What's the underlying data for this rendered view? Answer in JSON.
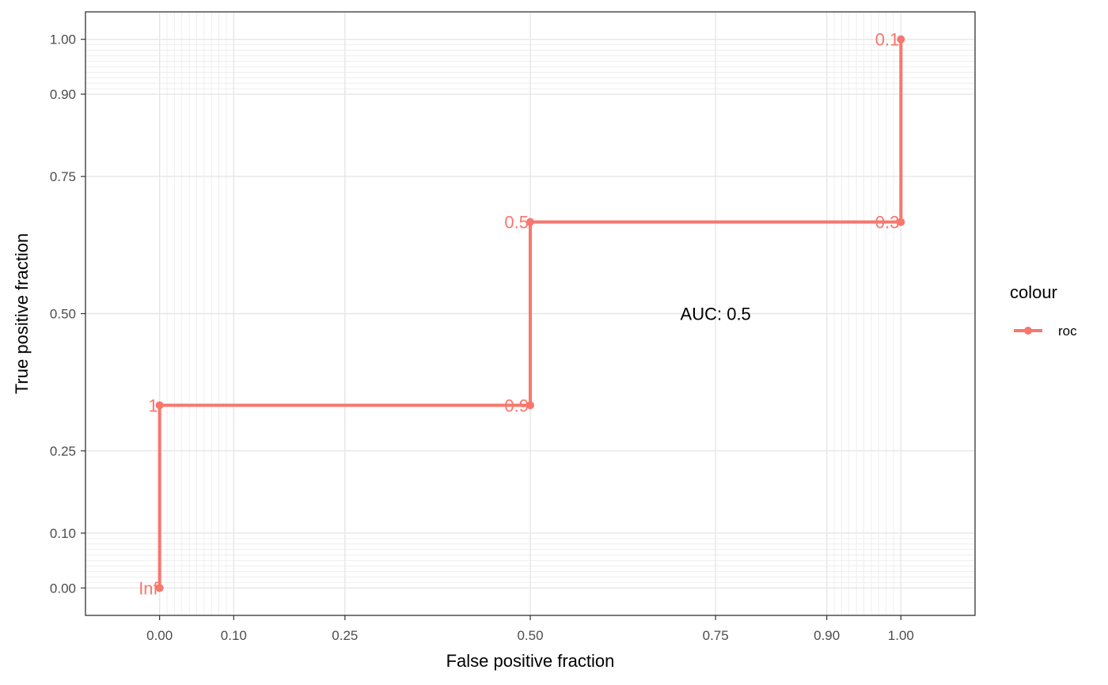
{
  "chart_data": {
    "type": "line",
    "title": "",
    "xlabel": "False positive fraction",
    "ylabel": "True positive fraction",
    "xlim": [
      -0.1,
      1.1
    ],
    "ylim": [
      -0.05,
      1.05
    ],
    "x_ticks": [
      0.0,
      0.1,
      0.25,
      0.5,
      0.75,
      0.9,
      1.0
    ],
    "x_tick_labels": [
      "0.00",
      "0.10",
      "0.25",
      "0.50",
      "0.75",
      "0.90",
      "1.00"
    ],
    "y_ticks": [
      0.0,
      0.1,
      0.25,
      0.5,
      0.75,
      0.9,
      1.0
    ],
    "y_tick_labels": [
      "0.00",
      "0.10",
      "0.25",
      "0.50",
      "0.75",
      "0.90",
      "1.00"
    ],
    "minor_grid": [
      0.01,
      0.02,
      0.03,
      0.04,
      0.05,
      0.06,
      0.07,
      0.08,
      0.09,
      0.91,
      0.92,
      0.93,
      0.94,
      0.95,
      0.96,
      0.97,
      0.98,
      0.99
    ],
    "grid": true,
    "series": [
      {
        "name": "roc",
        "color": "#F8766D",
        "step": true,
        "points": [
          {
            "x": 0.0,
            "y": 0.0,
            "label": "Inf"
          },
          {
            "x": 0.0,
            "y": 0.333,
            "label": "1"
          },
          {
            "x": 0.5,
            "y": 0.333,
            "label": "0.9"
          },
          {
            "x": 0.5,
            "y": 0.667,
            "label": "0.5"
          },
          {
            "x": 1.0,
            "y": 0.667,
            "label": "0.3"
          },
          {
            "x": 1.0,
            "y": 1.0,
            "label": "0.1"
          }
        ]
      }
    ],
    "annotation": {
      "text": "AUC: 0.5",
      "x": 0.75,
      "y": 0.5
    },
    "legend": {
      "title": "colour",
      "position": "right",
      "items": [
        "roc"
      ]
    }
  }
}
